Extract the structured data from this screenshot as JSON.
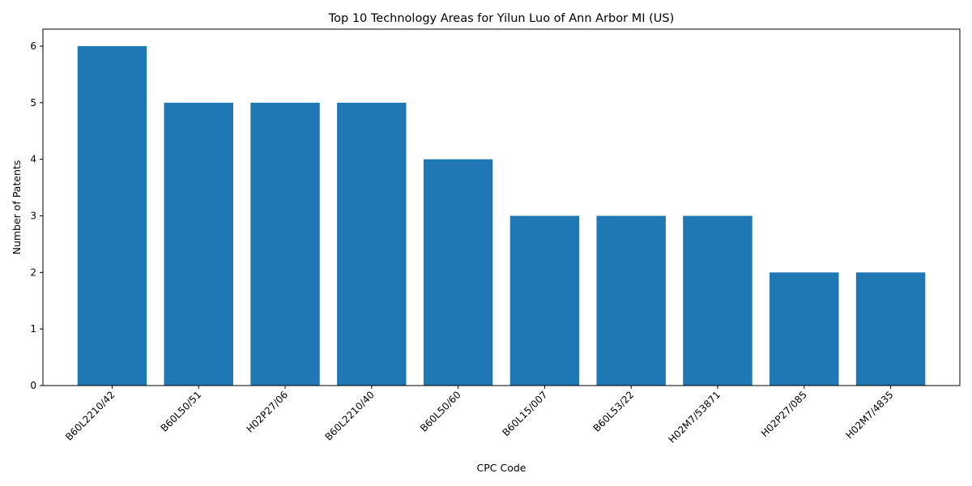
{
  "chart_data": {
    "type": "bar",
    "title": "Top 10 Technology Areas for Yilun Luo of Ann Arbor MI (US)",
    "xlabel": "CPC Code",
    "ylabel": "Number of Patents",
    "categories": [
      "B60L2210/42",
      "B60L50/51",
      "H02P27/06",
      "B60L2210/40",
      "B60L50/60",
      "B60L15/007",
      "B60L53/22",
      "H02M7/53871",
      "H02P27/085",
      "H02M7/4835"
    ],
    "values": [
      6,
      5,
      5,
      5,
      4,
      3,
      3,
      3,
      2,
      2
    ],
    "ylim": [
      0,
      6.3
    ],
    "yticks": [
      0,
      1,
      2,
      3,
      4,
      5,
      6
    ],
    "bar_color": "#1f77b4",
    "grid": false,
    "legend": "none"
  }
}
